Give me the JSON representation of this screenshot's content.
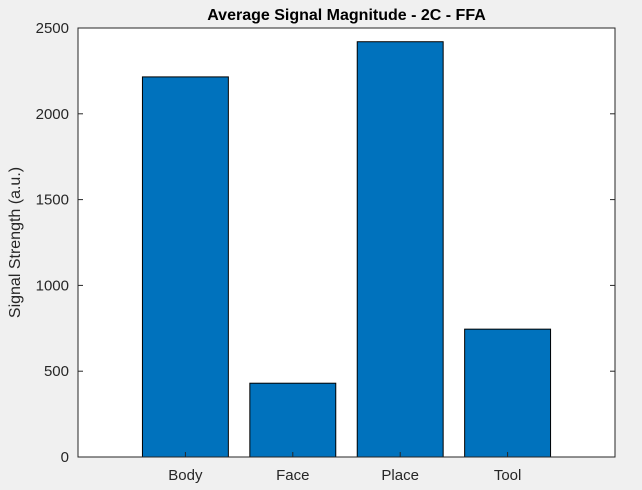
{
  "chart_data": {
    "type": "bar",
    "title": "Average Signal Magnitude - 2C - FFA",
    "xlabel": "",
    "ylabel": "Signal Strength (a.u.)",
    "categories": [
      "Body",
      "Face",
      "Place",
      "Tool"
    ],
    "values": [
      2215,
      430,
      2420,
      745
    ],
    "ylim": [
      0,
      2500
    ],
    "yticks": [
      0,
      500,
      1000,
      1500,
      2000,
      2500
    ],
    "xlim": [
      0,
      5
    ],
    "grid": false,
    "bar_color": "#0072bd",
    "bar_edge_color": "#000000"
  }
}
